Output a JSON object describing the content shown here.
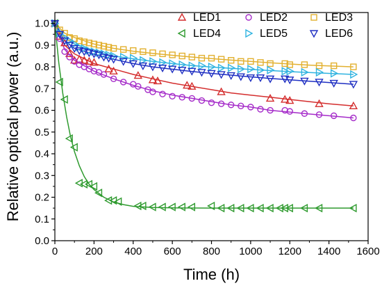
{
  "chart_data": {
    "type": "scatter",
    "xlabel": "Time (h)",
    "ylabel": "Relative optical power (a.u.)",
    "xlim": [
      0,
      1600
    ],
    "ylim": [
      0.0,
      1.05
    ],
    "xticks": [
      "0",
      "200",
      "400",
      "600",
      "800",
      "1000",
      "1200",
      "1400",
      "1600"
    ],
    "yticks": [
      "0.0",
      "0.1",
      "0.2",
      "0.3",
      "0.4",
      "0.5",
      "0.6",
      "0.7",
      "0.8",
      "0.9",
      "1.0"
    ],
    "grid": false,
    "legend_position": "top-right",
    "series": [
      {
        "name": "LED1",
        "color": "#d42d2d",
        "marker": "triangle-up",
        "x": [
          0,
          25,
          50,
          75,
          100,
          125,
          150,
          175,
          200,
          275,
          300,
          425,
          500,
          525,
          675,
          700,
          850,
          1100,
          1175,
          1200,
          1350,
          1525
        ],
        "y": [
          1.0,
          0.94,
          0.91,
          0.86,
          0.83,
          0.835,
          0.83,
          0.825,
          0.82,
          0.79,
          0.78,
          0.76,
          0.74,
          0.735,
          0.715,
          0.71,
          0.685,
          0.655,
          0.65,
          0.645,
          0.63,
          0.62
        ],
        "fit": [
          [
            0,
            1.0
          ],
          [
            50,
            0.9
          ],
          [
            100,
            0.86
          ],
          [
            200,
            0.815
          ],
          [
            300,
            0.79
          ],
          [
            400,
            0.765
          ],
          [
            500,
            0.745
          ],
          [
            600,
            0.725
          ],
          [
            700,
            0.71
          ],
          [
            800,
            0.695
          ],
          [
            900,
            0.68
          ],
          [
            1000,
            0.67
          ],
          [
            1100,
            0.66
          ],
          [
            1200,
            0.65
          ],
          [
            1300,
            0.64
          ],
          [
            1400,
            0.63
          ],
          [
            1525,
            0.62
          ]
        ]
      },
      {
        "name": "LED2",
        "color": "#a52bc9",
        "marker": "circle",
        "x": [
          0,
          25,
          50,
          75,
          100,
          125,
          150,
          175,
          200,
          225,
          250,
          300,
          350,
          400,
          425,
          475,
          500,
          550,
          600,
          650,
          700,
          750,
          800,
          850,
          900,
          950,
          1000,
          1050,
          1100,
          1175,
          1200,
          1275,
          1350,
          1425,
          1525
        ],
        "y": [
          1.0,
          0.93,
          0.87,
          0.845,
          0.825,
          0.81,
          0.8,
          0.79,
          0.78,
          0.775,
          0.765,
          0.745,
          0.73,
          0.72,
          0.71,
          0.695,
          0.685,
          0.675,
          0.665,
          0.66,
          0.655,
          0.645,
          0.635,
          0.63,
          0.625,
          0.62,
          0.615,
          0.605,
          0.6,
          0.6,
          0.595,
          0.585,
          0.58,
          0.575,
          0.565
        ],
        "fit": [
          [
            0,
            1.0
          ],
          [
            50,
            0.88
          ],
          [
            100,
            0.83
          ],
          [
            200,
            0.78
          ],
          [
            300,
            0.745
          ],
          [
            400,
            0.715
          ],
          [
            500,
            0.69
          ],
          [
            600,
            0.67
          ],
          [
            700,
            0.655
          ],
          [
            800,
            0.64
          ],
          [
            900,
            0.625
          ],
          [
            1000,
            0.615
          ],
          [
            1100,
            0.6
          ],
          [
            1200,
            0.592
          ],
          [
            1300,
            0.583
          ],
          [
            1400,
            0.575
          ],
          [
            1525,
            0.565
          ]
        ]
      },
      {
        "name": "LED3",
        "color": "#e2b02f",
        "marker": "square",
        "x": [
          0,
          25,
          50,
          75,
          100,
          125,
          150,
          175,
          200,
          225,
          250,
          275,
          300,
          350,
          400,
          450,
          500,
          550,
          600,
          650,
          700,
          750,
          800,
          850,
          900,
          950,
          1000,
          1050,
          1100,
          1175,
          1200,
          1275,
          1350,
          1425,
          1525
        ],
        "y": [
          1.0,
          0.97,
          0.955,
          0.935,
          0.93,
          0.92,
          0.915,
          0.91,
          0.905,
          0.9,
          0.895,
          0.89,
          0.885,
          0.88,
          0.875,
          0.87,
          0.865,
          0.86,
          0.855,
          0.85,
          0.845,
          0.84,
          0.84,
          0.835,
          0.83,
          0.825,
          0.825,
          0.82,
          0.815,
          0.815,
          0.81,
          0.81,
          0.805,
          0.805,
          0.8
        ],
        "fit": [
          [
            0,
            1.0
          ],
          [
            50,
            0.955
          ],
          [
            100,
            0.935
          ],
          [
            200,
            0.905
          ],
          [
            300,
            0.885
          ],
          [
            400,
            0.872
          ],
          [
            500,
            0.862
          ],
          [
            600,
            0.853
          ],
          [
            700,
            0.845
          ],
          [
            800,
            0.838
          ],
          [
            900,
            0.831
          ],
          [
            1000,
            0.825
          ],
          [
            1100,
            0.819
          ],
          [
            1200,
            0.813
          ],
          [
            1300,
            0.808
          ],
          [
            1400,
            0.804
          ],
          [
            1525,
            0.8
          ]
        ]
      },
      {
        "name": "LED4",
        "color": "#2e9a2e",
        "marker": "triangle-left",
        "x": [
          0,
          25,
          50,
          75,
          100,
          125,
          150,
          175,
          200,
          225,
          275,
          300,
          325,
          425,
          450,
          500,
          550,
          600,
          650,
          700,
          800,
          850,
          900,
          950,
          1000,
          1050,
          1100,
          1150,
          1175,
          1200,
          1275,
          1350,
          1525
        ],
        "y": [
          1.0,
          0.73,
          0.65,
          0.47,
          0.43,
          0.265,
          0.26,
          0.26,
          0.25,
          0.22,
          0.185,
          0.185,
          0.18,
          0.16,
          0.16,
          0.155,
          0.155,
          0.155,
          0.155,
          0.155,
          0.16,
          0.15,
          0.15,
          0.15,
          0.15,
          0.15,
          0.15,
          0.15,
          0.15,
          0.15,
          0.15,
          0.15,
          0.15
        ],
        "fit": [
          [
            0,
            1.0
          ],
          [
            20,
            0.82
          ],
          [
            40,
            0.68
          ],
          [
            60,
            0.57
          ],
          [
            80,
            0.48
          ],
          [
            100,
            0.41
          ],
          [
            125,
            0.345
          ],
          [
            150,
            0.295
          ],
          [
            175,
            0.26
          ],
          [
            200,
            0.235
          ],
          [
            250,
            0.2
          ],
          [
            300,
            0.178
          ],
          [
            350,
            0.166
          ],
          [
            400,
            0.158
          ],
          [
            500,
            0.153
          ],
          [
            600,
            0.151
          ],
          [
            800,
            0.15
          ],
          [
            1000,
            0.15
          ],
          [
            1525,
            0.15
          ]
        ]
      },
      {
        "name": "LED5",
        "color": "#2fb3e0",
        "marker": "triangle-right",
        "x": [
          0,
          25,
          50,
          75,
          100,
          125,
          150,
          175,
          200,
          225,
          250,
          275,
          300,
          350,
          400,
          450,
          500,
          550,
          600,
          650,
          700,
          750,
          800,
          850,
          900,
          950,
          1000,
          1050,
          1100,
          1175,
          1200,
          1275,
          1350,
          1425,
          1525
        ],
        "y": [
          1.0,
          0.955,
          0.935,
          0.92,
          0.905,
          0.89,
          0.885,
          0.875,
          0.87,
          0.865,
          0.86,
          0.855,
          0.85,
          0.845,
          0.84,
          0.83,
          0.825,
          0.82,
          0.815,
          0.81,
          0.805,
          0.805,
          0.8,
          0.795,
          0.795,
          0.79,
          0.79,
          0.785,
          0.785,
          0.78,
          0.78,
          0.775,
          0.775,
          0.77,
          0.765
        ],
        "fit": [
          [
            0,
            1.0
          ],
          [
            50,
            0.935
          ],
          [
            100,
            0.905
          ],
          [
            200,
            0.87
          ],
          [
            300,
            0.85
          ],
          [
            400,
            0.837
          ],
          [
            500,
            0.825
          ],
          [
            600,
            0.815
          ],
          [
            700,
            0.806
          ],
          [
            800,
            0.799
          ],
          [
            900,
            0.793
          ],
          [
            1000,
            0.788
          ],
          [
            1100,
            0.783
          ],
          [
            1200,
            0.778
          ],
          [
            1300,
            0.774
          ],
          [
            1400,
            0.77
          ],
          [
            1525,
            0.765
          ]
        ]
      },
      {
        "name": "LED6",
        "color": "#1f2fc2",
        "marker": "triangle-down",
        "x": [
          0,
          25,
          50,
          75,
          100,
          125,
          150,
          175,
          200,
          225,
          250,
          275,
          300,
          350,
          400,
          450,
          500,
          550,
          600,
          650,
          700,
          750,
          800,
          850,
          900,
          950,
          1000,
          1050,
          1100,
          1175,
          1200,
          1275,
          1350,
          1425,
          1525
        ],
        "y": [
          1.0,
          0.95,
          0.92,
          0.9,
          0.885,
          0.875,
          0.87,
          0.865,
          0.86,
          0.855,
          0.845,
          0.84,
          0.835,
          0.825,
          0.815,
          0.805,
          0.8,
          0.795,
          0.79,
          0.785,
          0.78,
          0.775,
          0.77,
          0.765,
          0.76,
          0.755,
          0.75,
          0.75,
          0.745,
          0.745,
          0.74,
          0.735,
          0.73,
          0.725,
          0.72
        ],
        "fit": [
          [
            0,
            1.0
          ],
          [
            50,
            0.92
          ],
          [
            100,
            0.885
          ],
          [
            200,
            0.858
          ],
          [
            300,
            0.835
          ],
          [
            400,
            0.815
          ],
          [
            500,
            0.8
          ],
          [
            600,
            0.789
          ],
          [
            700,
            0.779
          ],
          [
            800,
            0.77
          ],
          [
            900,
            0.762
          ],
          [
            1000,
            0.754
          ],
          [
            1100,
            0.747
          ],
          [
            1200,
            0.74
          ],
          [
            1300,
            0.734
          ],
          [
            1400,
            0.728
          ],
          [
            1525,
            0.72
          ]
        ]
      }
    ]
  }
}
